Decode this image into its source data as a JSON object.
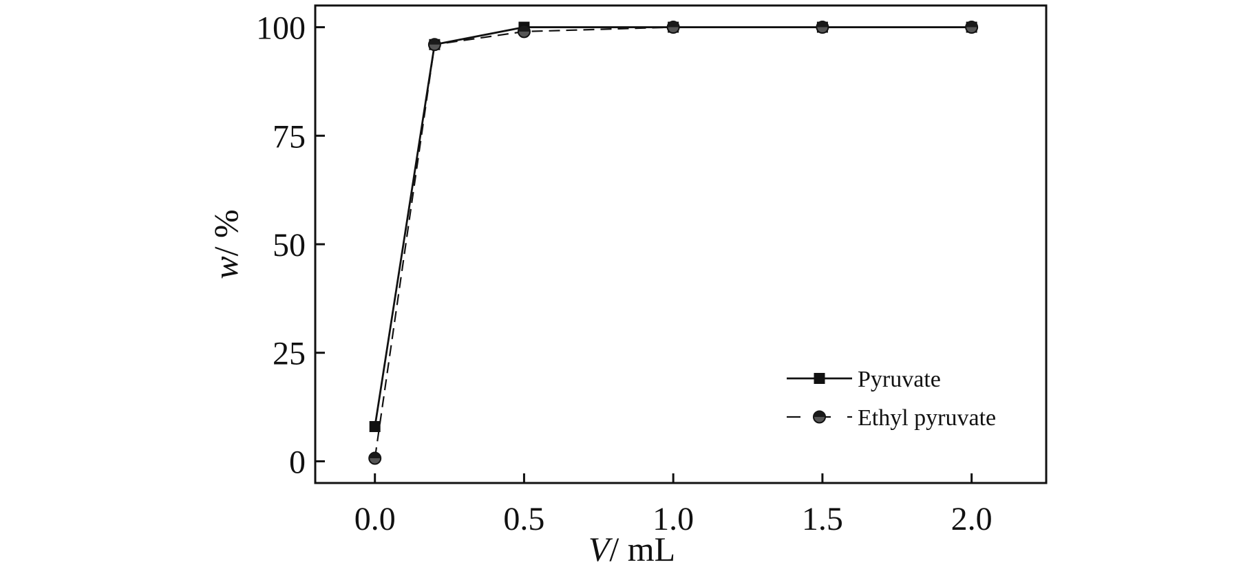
{
  "chart_data": {
    "type": "line",
    "title": "",
    "xlabel": {
      "symbol": "V",
      "unit": "/ mL"
    },
    "ylabel": {
      "symbol": "w",
      "unit": "/ %"
    },
    "xlim": [
      -0.2,
      2.25
    ],
    "ylim": [
      -5,
      105
    ],
    "x_ticks": [
      0.0,
      0.5,
      1.0,
      1.5,
      2.0
    ],
    "x_tick_labels": [
      "0.0",
      "0.5",
      "1.0",
      "1.5",
      "2.0"
    ],
    "y_ticks": [
      0,
      25,
      50,
      75,
      100
    ],
    "y_tick_labels": [
      "0",
      "25",
      "50",
      "75",
      "100"
    ],
    "grid": false,
    "legend_position": "bottom-right",
    "series": [
      {
        "name": "Pyruvate",
        "line_style": "solid",
        "marker": "square",
        "color": "#111111",
        "x": [
          0.0,
          0.2,
          0.5,
          1.0,
          1.5,
          2.0
        ],
        "y": [
          8,
          96,
          100,
          100,
          100,
          100
        ]
      },
      {
        "name": "Ethyl pyruvate",
        "line_style": "dashed",
        "marker": "circle",
        "color": "#111111",
        "x": [
          0.0,
          0.2,
          0.5,
          1.0,
          1.5,
          2.0
        ],
        "y": [
          0.7,
          96,
          99,
          100,
          100,
          100
        ]
      }
    ]
  }
}
